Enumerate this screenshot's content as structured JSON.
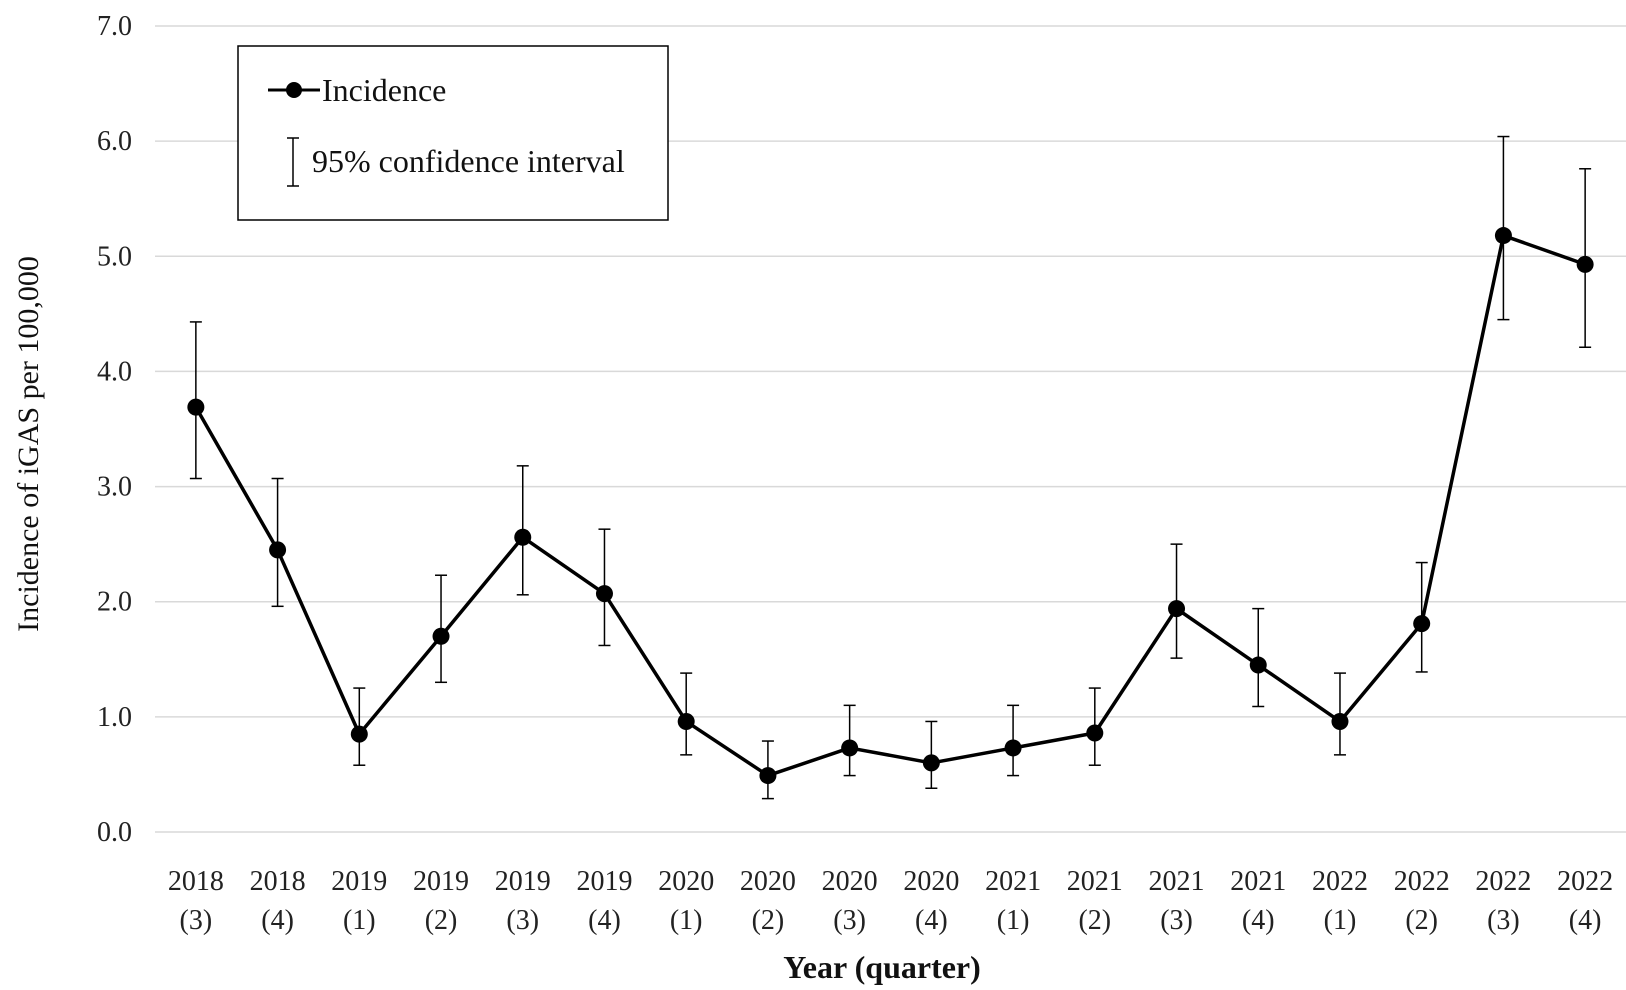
{
  "chart_data": {
    "type": "line",
    "xlabel": "Year (quarter)",
    "ylabel": "Incidence of iGAS per 100,000",
    "ylim": [
      0,
      7
    ],
    "yticks": [
      "0.0",
      "1.0",
      "2.0",
      "3.0",
      "4.0",
      "5.0",
      "6.0",
      "7.0"
    ],
    "grid": true,
    "legend_position": "top-left",
    "categories": [
      {
        "year": "2018",
        "quarter": "(3)"
      },
      {
        "year": "2018",
        "quarter": "(4)"
      },
      {
        "year": "2019",
        "quarter": "(1)"
      },
      {
        "year": "2019",
        "quarter": "(2)"
      },
      {
        "year": "2019",
        "quarter": "(3)"
      },
      {
        "year": "2019",
        "quarter": "(4)"
      },
      {
        "year": "2020",
        "quarter": "(1)"
      },
      {
        "year": "2020",
        "quarter": "(2)"
      },
      {
        "year": "2020",
        "quarter": "(3)"
      },
      {
        "year": "2020",
        "quarter": "(4)"
      },
      {
        "year": "2021",
        "quarter": "(1)"
      },
      {
        "year": "2021",
        "quarter": "(2)"
      },
      {
        "year": "2021",
        "quarter": "(3)"
      },
      {
        "year": "2021",
        "quarter": "(4)"
      },
      {
        "year": "2022",
        "quarter": "(1)"
      },
      {
        "year": "2022",
        "quarter": "(2)"
      },
      {
        "year": "2022",
        "quarter": "(3)"
      },
      {
        "year": "2022",
        "quarter": "(4)"
      }
    ],
    "series": [
      {
        "name": "Incidence",
        "color": "#000000",
        "values": [
          3.69,
          2.45,
          0.85,
          1.7,
          2.56,
          2.07,
          0.96,
          0.49,
          0.73,
          0.6,
          0.73,
          0.86,
          1.94,
          1.45,
          0.96,
          1.81,
          5.18,
          4.93
        ],
        "ci_lower": [
          3.07,
          1.96,
          0.58,
          1.3,
          2.06,
          1.62,
          0.67,
          0.29,
          0.49,
          0.38,
          0.49,
          0.58,
          1.51,
          1.09,
          0.67,
          1.39,
          4.45,
          4.21
        ],
        "ci_upper": [
          4.43,
          3.07,
          1.25,
          2.23,
          3.18,
          2.63,
          1.38,
          0.79,
          1.1,
          0.96,
          1.1,
          1.25,
          2.5,
          1.94,
          1.38,
          2.34,
          6.04,
          5.76
        ]
      }
    ],
    "legend": {
      "line_entry": "Incidence",
      "ci_entry": "95% confidence interval"
    }
  }
}
